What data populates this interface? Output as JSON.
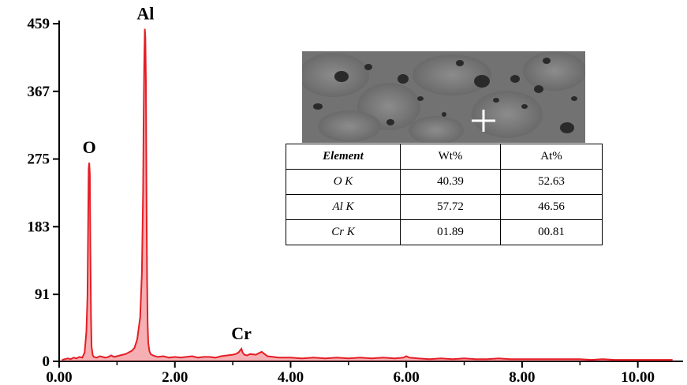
{
  "chart_data": {
    "type": "line",
    "title": "",
    "xlabel": "",
    "ylabel": "",
    "xlim": [
      0.0,
      10.7
    ],
    "ylim": [
      0,
      459
    ],
    "x_ticks": [
      "0.00",
      "2.00",
      "4.00",
      "6.00",
      "8.00",
      "10.00"
    ],
    "y_ticks": [
      "0",
      "91",
      "183",
      "275",
      "367",
      "459"
    ],
    "color": "#e41e26",
    "peaks": [
      {
        "label": "O",
        "x": 0.52,
        "y": 270
      },
      {
        "label": "Al",
        "x": 1.49,
        "y": 452
      },
      {
        "label": "Cr",
        "x": 3.15,
        "y": 17
      }
    ],
    "series": [
      {
        "values_x": [
          0.05,
          0.1,
          0.15,
          0.2,
          0.25,
          0.3,
          0.35,
          0.4,
          0.44,
          0.47,
          0.49,
          0.5,
          0.51,
          0.52,
          0.53,
          0.54,
          0.55,
          0.56,
          0.58,
          0.6,
          0.65,
          0.7,
          0.75,
          0.8,
          0.85,
          0.9,
          0.95,
          1.0,
          1.05,
          1.1,
          1.15,
          1.2,
          1.25,
          1.3,
          1.35,
          1.4,
          1.43,
          1.45,
          1.46,
          1.47,
          1.48,
          1.49,
          1.5,
          1.51,
          1.52,
          1.53,
          1.54,
          1.56,
          1.58,
          1.62,
          1.7,
          1.8,
          1.9,
          2.0,
          2.1,
          2.2,
          2.3,
          2.4,
          2.5,
          2.6,
          2.7,
          2.8,
          2.9,
          3.0,
          3.05,
          3.1,
          3.13,
          3.15,
          3.17,
          3.2,
          3.25,
          3.3,
          3.4,
          3.45,
          3.5,
          3.55,
          3.6,
          3.7,
          3.8,
          3.9,
          4.0,
          4.2,
          4.4,
          4.6,
          4.8,
          5.0,
          5.2,
          5.4,
          5.6,
          5.8,
          5.95,
          6.0,
          6.05,
          6.2,
          6.4,
          6.6,
          6.8,
          7.0,
          7.2,
          7.4,
          7.6,
          7.8,
          8.0,
          8.2,
          8.4,
          8.6,
          8.8,
          9.0,
          9.2,
          9.4,
          9.6,
          9.8,
          10.0,
          10.2,
          10.4,
          10.6
        ],
        "values_y": [
          2,
          3,
          4,
          3,
          5,
          4,
          6,
          5,
          12,
          40,
          88,
          180,
          262,
          270,
          255,
          150,
          60,
          20,
          8,
          6,
          5,
          7,
          6,
          5,
          6,
          8,
          6,
          7,
          8,
          9,
          10,
          12,
          14,
          18,
          30,
          60,
          120,
          230,
          330,
          400,
          452,
          440,
          380,
          210,
          110,
          50,
          25,
          14,
          10,
          8,
          6,
          7,
          5,
          6,
          5,
          6,
          7,
          5,
          6,
          6,
          5,
          7,
          8,
          9,
          10,
          12,
          15,
          17,
          12,
          9,
          8,
          10,
          9,
          11,
          13,
          10,
          7,
          6,
          5,
          5,
          5,
          4,
          5,
          4,
          5,
          4,
          5,
          4,
          5,
          4,
          5,
          7,
          5,
          4,
          3,
          4,
          3,
          4,
          3,
          3,
          4,
          3,
          3,
          3,
          3,
          3,
          3,
          3,
          2,
          3,
          2,
          2,
          2,
          2,
          2,
          2
        ]
      }
    ]
  },
  "inset_table": {
    "headers": [
      "Element",
      "Wt%",
      "At%"
    ],
    "rows": [
      [
        "O K",
        "40.39",
        "52.63"
      ],
      [
        "Al K",
        "57.72",
        "46.56"
      ],
      [
        "Cr K",
        "01.89",
        "00.81"
      ]
    ]
  }
}
